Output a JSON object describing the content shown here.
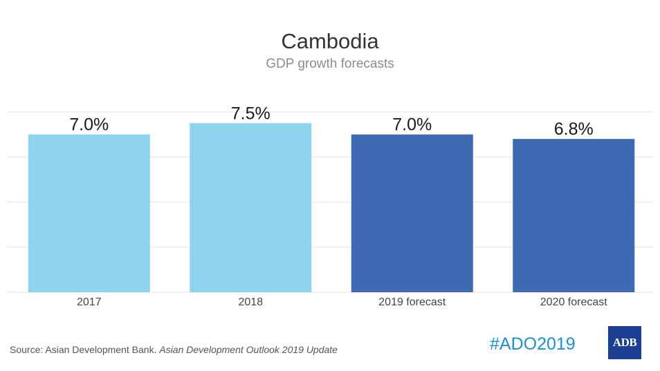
{
  "chart_data": {
    "type": "bar",
    "title": "Cambodia",
    "subtitle": "GDP growth forecasts",
    "categories": [
      "2017",
      "2018",
      "2019 forecast",
      "2020 forecast"
    ],
    "values": [
      7.0,
      7.5,
      7.0,
      6.8
    ],
    "value_labels": [
      "7.0%",
      "7.5%",
      "7.0%",
      "6.8%"
    ],
    "bar_colors": [
      "#8fd3ee",
      "#8fd3ee",
      "#3d6ab3",
      "#3d6ab3"
    ],
    "ylim": [
      0,
      8
    ],
    "grid": true,
    "xlabel": "",
    "ylabel": ""
  },
  "footer": {
    "source_prefix": "Source: Asian Development Bank.",
    "source_publication": "Asian Development Outlook 2019 Update",
    "hashtag": "#ADO2019",
    "logo_text": "ADB"
  },
  "colors": {
    "grid": "#e6e6e6",
    "hashtag": "#1f8fcf",
    "logo_bg": "#1c3f94"
  }
}
